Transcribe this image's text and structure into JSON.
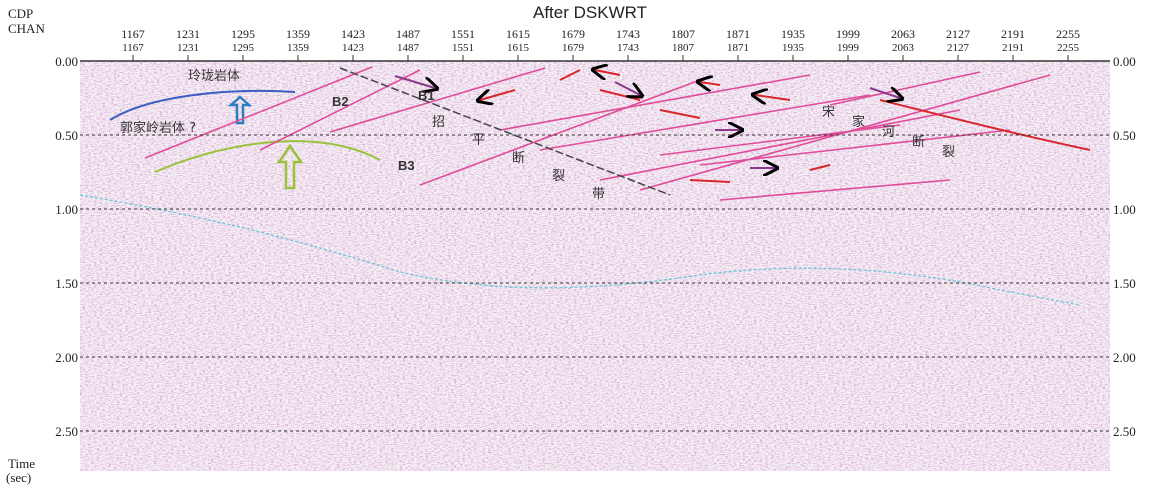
{
  "header": {
    "title": "After DSKWRT",
    "row1_label": "CDP",
    "row2_label": "CHAN"
  },
  "cdp_ticks": [
    "1167",
    "1231",
    "1295",
    "1359",
    "1423",
    "1487",
    "1551",
    "1615",
    "1679",
    "1743",
    "1807",
    "1871",
    "1935",
    "1999",
    "2063",
    "2127",
    "2191",
    "2255"
  ],
  "chan_ticks": [
    "1167",
    "1231",
    "1295",
    "1359",
    "1423",
    "1487",
    "1551",
    "1615",
    "1679",
    "1743",
    "1807",
    "1871",
    "1935",
    "1999",
    "2063",
    "2127",
    "2191",
    "2255"
  ],
  "time_ticks": [
    "0.00",
    "0.50",
    "1.00",
    "1.50",
    "2.00",
    "2.50"
  ],
  "time_label": {
    "line1": "Time",
    "line2": "(sec)"
  },
  "annotations": {
    "linglong": "玲珑岩体",
    "guojialing": "郭家岭岩体 ?",
    "b1": "B1",
    "b2": "B2",
    "b3": "B3",
    "zhaoping": [
      "招",
      "平",
      "断",
      "裂",
      "带"
    ],
    "songjiahe": [
      "宋",
      "家",
      "河",
      "断",
      "裂"
    ]
  }
}
